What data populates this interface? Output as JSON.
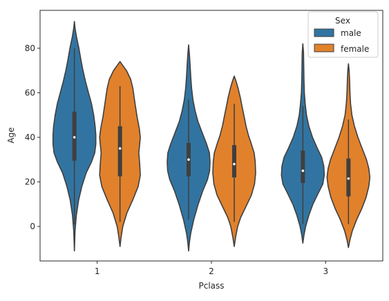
{
  "chart_data": {
    "type": "violin",
    "xlabel": "Pclass",
    "ylabel": "Age",
    "categories": [
      "1",
      "2",
      "3"
    ],
    "y_ticks": [
      "0",
      "20",
      "40",
      "60",
      "80"
    ],
    "y_tick_values": [
      0,
      20,
      40,
      60,
      80
    ],
    "ylim": [
      -15.5,
      97
    ],
    "legend": {
      "title": "Sex",
      "placement": "upper-right",
      "entries": [
        "male",
        "female"
      ]
    },
    "colors": {
      "male": "#3274a1",
      "female": "#e1812c",
      "outline": "#3f3f3f",
      "box": "#3f3f3f",
      "median": "#ffffff"
    },
    "series": [
      {
        "name": "male",
        "violins": [
          {
            "category": "1",
            "kde_min": -11,
            "kde_max": 92,
            "q1": 29.5,
            "median": 40,
            "q3": 51.5,
            "whisker_low": 0.9,
            "whisker_high": 80,
            "profile": [
              [
                -11,
                0
              ],
              [
                -2,
                0.03
              ],
              [
                5,
                0.09
              ],
              [
                12,
                0.2
              ],
              [
                18,
                0.35
              ],
              [
                24,
                0.55
              ],
              [
                29,
                0.8
              ],
              [
                33,
                0.95
              ],
              [
                37,
                1.0
              ],
              [
                41,
                1.0
              ],
              [
                45,
                0.97
              ],
              [
                50,
                0.9
              ],
              [
                55,
                0.8
              ],
              [
                60,
                0.66
              ],
              [
                65,
                0.52
              ],
              [
                70,
                0.4
              ],
              [
                75,
                0.3
              ],
              [
                80,
                0.21
              ],
              [
                85,
                0.1
              ],
              [
                89,
                0.03
              ],
              [
                92,
                0
              ]
            ]
          },
          {
            "category": "2",
            "kde_min": -11,
            "kde_max": 81.5,
            "q1": 22.5,
            "median": 30,
            "q3": 37.5,
            "whisker_low": 3,
            "whisker_high": 57,
            "profile": [
              [
                -11,
                0
              ],
              [
                -7,
                0.04
              ],
              [
                -3,
                0.1
              ],
              [
                3,
                0.24
              ],
              [
                10,
                0.45
              ],
              [
                16,
                0.66
              ],
              [
                21,
                0.88
              ],
              [
                25,
                0.98
              ],
              [
                29,
                1.0
              ],
              [
                33,
                0.97
              ],
              [
                37,
                0.84
              ],
              [
                42,
                0.64
              ],
              [
                47,
                0.44
              ],
              [
                52,
                0.3
              ],
              [
                57,
                0.2
              ],
              [
                62,
                0.14
              ],
              [
                67,
                0.1
              ],
              [
                72,
                0.07
              ],
              [
                77,
                0.04
              ],
              [
                81.5,
                0
              ]
            ]
          },
          {
            "category": "3",
            "kde_min": -7.5,
            "kde_max": 82,
            "q1": 19.5,
            "median": 25,
            "q3": 34,
            "whisker_low": 1,
            "whisker_high": 54,
            "profile": [
              [
                -7.5,
                0
              ],
              [
                -4,
                0.05
              ],
              [
                0,
                0.13
              ],
              [
                5,
                0.28
              ],
              [
                10,
                0.47
              ],
              [
                15,
                0.72
              ],
              [
                19,
                0.93
              ],
              [
                23,
                1.0
              ],
              [
                27,
                0.98
              ],
              [
                31,
                0.88
              ],
              [
                35,
                0.68
              ],
              [
                40,
                0.45
              ],
              [
                45,
                0.28
              ],
              [
                50,
                0.17
              ],
              [
                55,
                0.11
              ],
              [
                60,
                0.07
              ],
              [
                66,
                0.05
              ],
              [
                72,
                0.04
              ],
              [
                78,
                0.03
              ],
              [
                82,
                0
              ]
            ]
          }
        ]
      },
      {
        "name": "female",
        "violins": [
          {
            "category": "1",
            "kde_min": -9,
            "kde_max": 74,
            "q1": 22.5,
            "median": 35,
            "q3": 45,
            "whisker_low": 2,
            "whisker_high": 63,
            "profile": [
              [
                -9,
                0
              ],
              [
                -5,
                0.05
              ],
              [
                0,
                0.13
              ],
              [
                6,
                0.32
              ],
              [
                12,
                0.6
              ],
              [
                18,
                0.85
              ],
              [
                23,
                0.95
              ],
              [
                28,
                0.92
              ],
              [
                33,
                0.88
              ],
              [
                37,
                0.92
              ],
              [
                40,
                0.95
              ],
              [
                44,
                0.9
              ],
              [
                49,
                0.8
              ],
              [
                54,
                0.72
              ],
              [
                58,
                0.66
              ],
              [
                62,
                0.6
              ],
              [
                66,
                0.5
              ],
              [
                70,
                0.3
              ],
              [
                72,
                0.15
              ],
              [
                74,
                0
              ]
            ]
          },
          {
            "category": "2",
            "kde_min": -9,
            "kde_max": 67.5,
            "q1": 22,
            "median": 28,
            "q3": 36.5,
            "whisker_low": 2,
            "whisker_high": 55,
            "profile": [
              [
                -9,
                0
              ],
              [
                -5,
                0.06
              ],
              [
                0,
                0.16
              ],
              [
                4,
                0.3
              ],
              [
                9,
                0.55
              ],
              [
                14,
                0.8
              ],
              [
                19,
                0.95
              ],
              [
                24,
                1.0
              ],
              [
                29,
                0.98
              ],
              [
                33,
                0.93
              ],
              [
                37,
                0.8
              ],
              [
                41,
                0.66
              ],
              [
                45,
                0.55
              ],
              [
                50,
                0.45
              ],
              [
                54,
                0.36
              ],
              [
                58,
                0.28
              ],
              [
                62,
                0.18
              ],
              [
                65,
                0.09
              ],
              [
                67.5,
                0
              ]
            ]
          },
          {
            "category": "3",
            "kde_min": -9.5,
            "kde_max": 73,
            "q1": 13.5,
            "median": 21.5,
            "q3": 30.5,
            "whisker_low": 1,
            "whisker_high": 48,
            "profile": [
              [
                -9.5,
                0
              ],
              [
                -6,
                0.07
              ],
              [
                -2,
                0.18
              ],
              [
                3,
                0.38
              ],
              [
                8,
                0.62
              ],
              [
                13,
                0.82
              ],
              [
                18,
                0.95
              ],
              [
                22,
                1.0
              ],
              [
                26,
                0.95
              ],
              [
                30,
                0.84
              ],
              [
                35,
                0.64
              ],
              [
                40,
                0.44
              ],
              [
                45,
                0.28
              ],
              [
                50,
                0.16
              ],
              [
                55,
                0.1
              ],
              [
                60,
                0.07
              ],
              [
                66,
                0.05
              ],
              [
                70,
                0.03
              ],
              [
                73,
                0
              ]
            ]
          }
        ]
      }
    ]
  }
}
